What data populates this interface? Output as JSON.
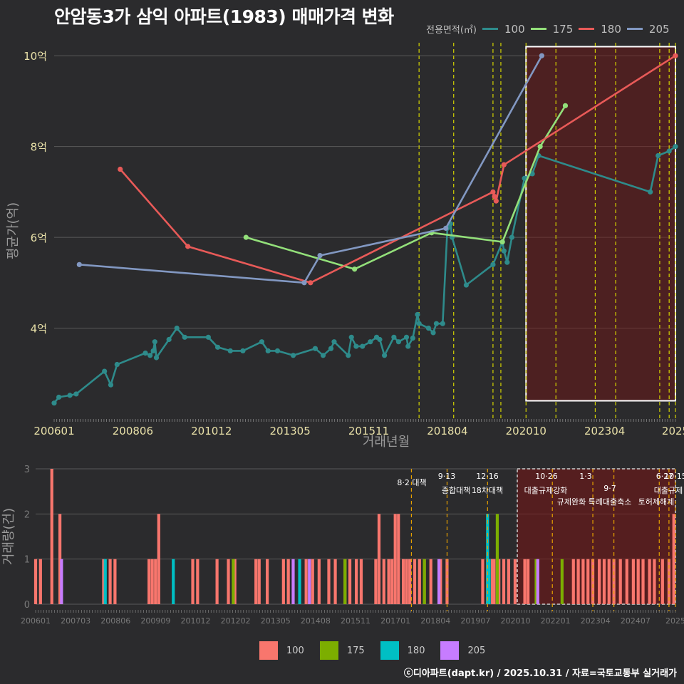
{
  "title": "안암동3가 삼익 아파트(1983) 매매가격 변화",
  "footer": "ⓒ디아파트(dapt.kr) / 2025.10.31 / 자료=국토교통부 실거래가",
  "legend_top": {
    "title": "전용면적(㎡)",
    "items": [
      {
        "label": "100",
        "color": "#2e8b8b"
      },
      {
        "label": "175",
        "color": "#93e07a"
      },
      {
        "label": "180",
        "color": "#e85a58"
      },
      {
        "label": "205",
        "color": "#8298c2"
      }
    ]
  },
  "legend_bottom": {
    "items": [
      {
        "label": "100",
        "color": "#f8766d"
      },
      {
        "label": "175",
        "color": "#7cae00"
      },
      {
        "label": "180",
        "color": "#00bfc4"
      },
      {
        "label": "205",
        "color": "#c77cff"
      }
    ]
  },
  "chart_data": [
    {
      "type": "line",
      "title": "안암동3가 삼익 아파트(1983) 매매가격 변화",
      "xlabel": "거래년월",
      "ylabel": "평균가(억)",
      "xlim": [
        2006.0,
        2025.75
      ],
      "ylim": [
        2.0,
        10.6
      ],
      "x_ticks": [
        2006.0,
        2008.5,
        2011.0,
        2013.5,
        2016.0,
        2018.5,
        2021.0,
        2023.5,
        2025.75
      ],
      "x_tick_labels": [
        "200601",
        "200806",
        "201012",
        "201305",
        "201511",
        "201804",
        "202010",
        "202304",
        "2025"
      ],
      "y_ticks": [
        4,
        6,
        8,
        10
      ],
      "y_tick_labels": [
        "4억",
        "6억",
        "8억",
        "10억"
      ],
      "policy_lines": [
        2017.6,
        2018.7,
        2019.95,
        2020.2,
        2021.0,
        2021.95,
        2023.2,
        2023.85,
        2025.25,
        2025.55,
        2025.75
      ],
      "highlight_range": [
        2021.0,
        2025.75,
        2.4,
        10.2
      ],
      "series": [
        {
          "name": "100",
          "x": [
            2006.0,
            2006.15,
            2006.5,
            2006.7,
            2007.6,
            2007.8,
            2008.0,
            2008.9,
            2009.05,
            2009.15,
            2009.2,
            2009.25,
            2009.65,
            2009.9,
            2010.15,
            2010.9,
            2011.2,
            2011.6,
            2012.0,
            2012.6,
            2012.8,
            2013.1,
            2013.6,
            2014.3,
            2014.55,
            2014.8,
            2014.9,
            2015.35,
            2015.45,
            2015.6,
            2015.8,
            2016.05,
            2016.25,
            2016.35,
            2016.5,
            2016.8,
            2016.95,
            2017.2,
            2017.25,
            2017.4,
            2017.55,
            2017.6,
            2017.9,
            2018.05,
            2018.15,
            2018.35,
            2018.5,
            2018.6,
            2018.65,
            2019.1,
            2019.95,
            2020.25,
            2020.3,
            2020.4,
            2020.55,
            2020.95,
            2021.2,
            2021.4,
            2024.95,
            2025.2,
            2025.55,
            2025.75
          ],
          "y": [
            2.35,
            2.48,
            2.52,
            2.55,
            3.05,
            2.75,
            3.2,
            3.45,
            3.4,
            3.5,
            3.7,
            3.35,
            3.75,
            4.0,
            3.8,
            3.8,
            3.58,
            3.5,
            3.5,
            3.7,
            3.5,
            3.5,
            3.4,
            3.55,
            3.4,
            3.55,
            3.7,
            3.4,
            3.8,
            3.6,
            3.6,
            3.7,
            3.8,
            3.75,
            3.4,
            3.8,
            3.7,
            3.8,
            3.6,
            3.78,
            4.3,
            4.1,
            4.0,
            3.9,
            4.1,
            4.1,
            6.2,
            6.3,
            6.0,
            4.95,
            5.4,
            5.9,
            5.7,
            5.45,
            6.0,
            7.3,
            7.4,
            7.8,
            7.0,
            7.8,
            7.9,
            8.0
          ]
        },
        {
          "name": "175",
          "x": [
            2012.1,
            2015.55,
            2018.0,
            2020.25,
            2021.45,
            2022.25
          ],
          "y": [
            6.0,
            5.3,
            6.1,
            5.9,
            8.0,
            8.9
          ]
        },
        {
          "name": "180",
          "x": [
            2008.1,
            2010.25,
            2014.15,
            2019.95,
            2020.0,
            2020.05,
            2020.3,
            2025.75
          ],
          "y": [
            7.5,
            5.8,
            5.0,
            7.0,
            6.9,
            6.8,
            7.6,
            10.0
          ]
        },
        {
          "name": "205",
          "x": [
            2006.8,
            2013.95,
            2014.45,
            2018.45,
            2021.5
          ],
          "y": [
            5.4,
            5.0,
            5.6,
            6.2,
            10.0
          ]
        }
      ]
    },
    {
      "type": "bar",
      "ylabel": "거래량(건)",
      "ylim": [
        0,
        3
      ],
      "y_ticks": [
        0,
        1,
        2,
        3
      ],
      "x_tick_labels": [
        "200601",
        "200703",
        "200806",
        "200909",
        "201012",
        "201202",
        "201305",
        "201408",
        "201511",
        "201701",
        "201804",
        "201907",
        "202010",
        "202201",
        "202304",
        "202407",
        "2025"
      ],
      "policy_annotations": [
        {
          "date": "8·2 대책",
          "x": 2017.6
        },
        {
          "date": "9·13",
          "label": "종합대책",
          "x": 2018.7
        },
        {
          "date": "12·16",
          "label": "18차대책",
          "x": 2019.95
        },
        {
          "date": "10·26",
          "label": "대출규제강화",
          "x": 2021.95
        },
        {
          "date": "1·3",
          "label": "규제완화",
          "x": 2023.2
        },
        {
          "date": "9·7",
          "label": "특례대출축소",
          "x": 2023.85
        },
        {
          "date": "토허제해제",
          "x": 2025.25
        },
        {
          "date": "6·27",
          "label": "대출규제",
          "x": 2025.55
        },
        {
          "date": "10·15",
          "x": 2025.75
        }
      ],
      "series": [
        {
          "name": "100",
          "x": [
            2006.0,
            2006.15,
            2006.5,
            2006.75,
            2008.1,
            2008.3,
            2008.45,
            2009.5,
            2009.6,
            2009.7,
            2009.8,
            2010.85,
            2011.0,
            2011.6,
            2011.95,
            2012.15,
            2012.8,
            2012.9,
            2013.15,
            2013.65,
            2013.8,
            2014.35,
            2014.55,
            2014.75,
            2015.05,
            2015.25,
            2015.55,
            2015.7,
            2015.9,
            2016.05,
            2016.5,
            2016.6,
            2016.75,
            2016.9,
            2017.0,
            2017.1,
            2017.2,
            2017.35,
            2017.45,
            2017.55,
            2017.7,
            2017.85,
            2018.0,
            2018.2,
            2018.5,
            2018.7,
            2019.8,
            2019.95,
            2020.1,
            2020.15,
            2020.3,
            2020.45,
            2020.6,
            2020.8,
            2021.1,
            2021.2,
            2022.6,
            2022.75,
            2022.9,
            2023.05,
            2023.2,
            2023.4,
            2023.55,
            2023.7,
            2023.85,
            2024.05,
            2024.25,
            2024.45,
            2024.6,
            2024.75,
            2024.95,
            2025.1,
            2025.35,
            2025.55,
            2025.7
          ],
          "y": [
            1,
            1,
            3,
            2,
            1,
            1,
            1,
            1,
            1,
            1,
            2,
            1,
            1,
            1,
            1,
            1,
            1,
            1,
            1,
            1,
            1,
            1,
            1,
            1,
            1,
            1,
            1,
            1,
            1,
            1,
            1,
            2,
            1,
            1,
            1,
            2,
            2,
            1,
            1,
            1,
            1,
            1,
            1,
            1,
            1,
            1,
            1,
            1,
            1,
            1,
            1,
            1,
            1,
            1,
            1,
            1,
            1,
            1,
            1,
            1,
            1,
            1,
            1,
            1,
            1,
            1,
            1,
            1,
            1,
            1,
            1,
            1,
            1,
            1,
            2
          ]
        },
        {
          "name": "175",
          "x": [
            2012.1,
            2015.55,
            2018.0,
            2020.25,
            2021.45,
            2022.25
          ],
          "y": [
            1,
            1,
            1,
            2,
            1,
            1
          ]
        },
        {
          "name": "180",
          "x": [
            2008.15,
            2010.25,
            2014.15,
            2019.95,
            2020.0
          ],
          "y": [
            1,
            1,
            1,
            2,
            1
          ]
        },
        {
          "name": "205",
          "x": [
            2006.8,
            2013.95,
            2014.45,
            2018.45,
            2021.5
          ],
          "y": [
            1,
            1,
            1,
            1,
            1
          ]
        }
      ]
    }
  ]
}
